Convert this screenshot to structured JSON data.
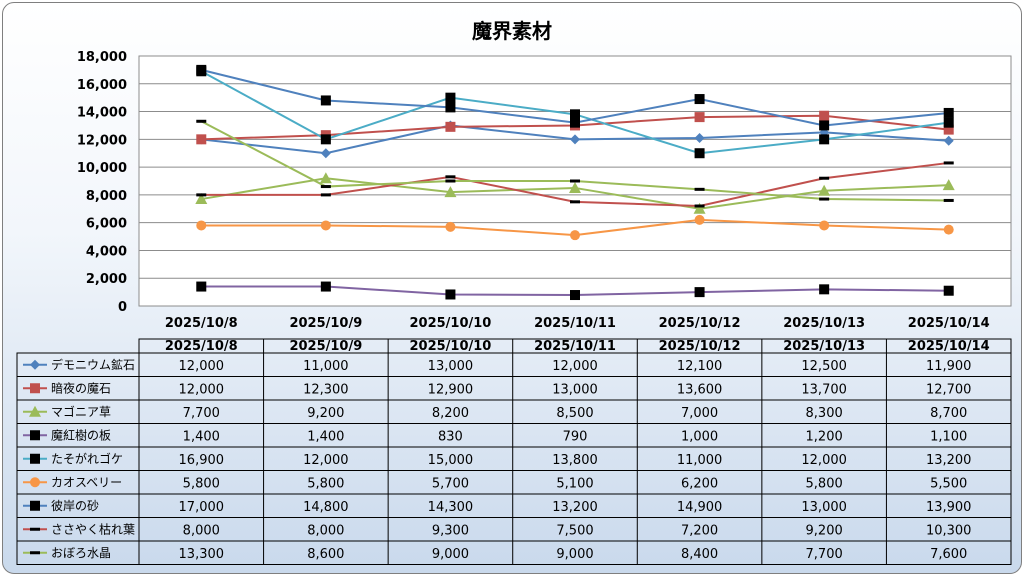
{
  "chart_data": {
    "type": "line",
    "title": "魔界素材",
    "ylim": [
      0,
      18000
    ],
    "yticks": [
      "0",
      "2,000",
      "4,000",
      "6,000",
      "8,000",
      "10,000",
      "12,000",
      "14,000",
      "16,000",
      "18,000"
    ],
    "grid": true,
    "legend": "data table below chart",
    "categories": [
      "2025/10/8",
      "2025/10/9",
      "2025/10/10",
      "2025/10/11",
      "2025/10/12",
      "2025/10/13",
      "2025/10/14"
    ],
    "series": [
      {
        "name": "デモニウム鉱石",
        "color": "#4F81BD",
        "marker": "diamond",
        "values": [
          12000,
          11000,
          13000,
          12000,
          12100,
          12500,
          11900
        ],
        "labels": [
          "12,000",
          "11,000",
          "13,000",
          "12,000",
          "12,100",
          "12,500",
          "11,900"
        ]
      },
      {
        "name": "暗夜の魔石",
        "color": "#C0504D",
        "marker": "square",
        "values": [
          12000,
          12300,
          12900,
          13000,
          13600,
          13700,
          12700
        ],
        "labels": [
          "12,000",
          "12,300",
          "12,900",
          "13,000",
          "13,600",
          "13,700",
          "12,700"
        ]
      },
      {
        "name": "マゴニア草",
        "color": "#9BBB59",
        "marker": "triangle",
        "values": [
          7700,
          9200,
          8200,
          8500,
          7000,
          8300,
          8700
        ],
        "labels": [
          "7,700",
          "9,200",
          "8,200",
          "8,500",
          "7,000",
          "8,300",
          "8,700"
        ]
      },
      {
        "name": "魔紅樹の板",
        "color": "#8064A2",
        "marker": "square-black",
        "values": [
          1400,
          1400,
          830,
          790,
          1000,
          1200,
          1100
        ],
        "labels": [
          "1,400",
          "1,400",
          "830",
          "790",
          "1,000",
          "1,200",
          "1,100"
        ]
      },
      {
        "name": "たそがれゴケ",
        "color": "#4BACC6",
        "marker": "square-black",
        "values": [
          16900,
          12000,
          15000,
          13800,
          11000,
          12000,
          13200
        ],
        "labels": [
          "16,900",
          "12,000",
          "15,000",
          "13,800",
          "11,000",
          "12,000",
          "13,200"
        ]
      },
      {
        "name": "カオスベリー",
        "color": "#F79646",
        "marker": "circle",
        "values": [
          5800,
          5800,
          5700,
          5100,
          6200,
          5800,
          5500
        ],
        "labels": [
          "5,800",
          "5,800",
          "5,700",
          "5,100",
          "6,200",
          "5,800",
          "5,500"
        ]
      },
      {
        "name": "彼岸の砂",
        "color": "#4F81BD",
        "marker": "square-black",
        "values": [
          17000,
          14800,
          14300,
          13200,
          14900,
          13000,
          13900
        ],
        "labels": [
          "17,000",
          "14,800",
          "14,300",
          "13,200",
          "14,900",
          "13,000",
          "13,900"
        ]
      },
      {
        "name": "ささやく枯れ葉",
        "color": "#C0504D",
        "marker": "dash",
        "values": [
          8000,
          8000,
          9300,
          7500,
          7200,
          9200,
          10300
        ],
        "labels": [
          "8,000",
          "8,000",
          "9,300",
          "7,500",
          "7,200",
          "9,200",
          "10,300"
        ]
      },
      {
        "name": "おぼろ水晶",
        "color": "#9BBB59",
        "marker": "dash",
        "values": [
          13300,
          8600,
          9000,
          9000,
          8400,
          7700,
          7600
        ],
        "labels": [
          "13,300",
          "8,600",
          "9,000",
          "9,000",
          "8,400",
          "7,700",
          "7,600"
        ]
      }
    ]
  }
}
